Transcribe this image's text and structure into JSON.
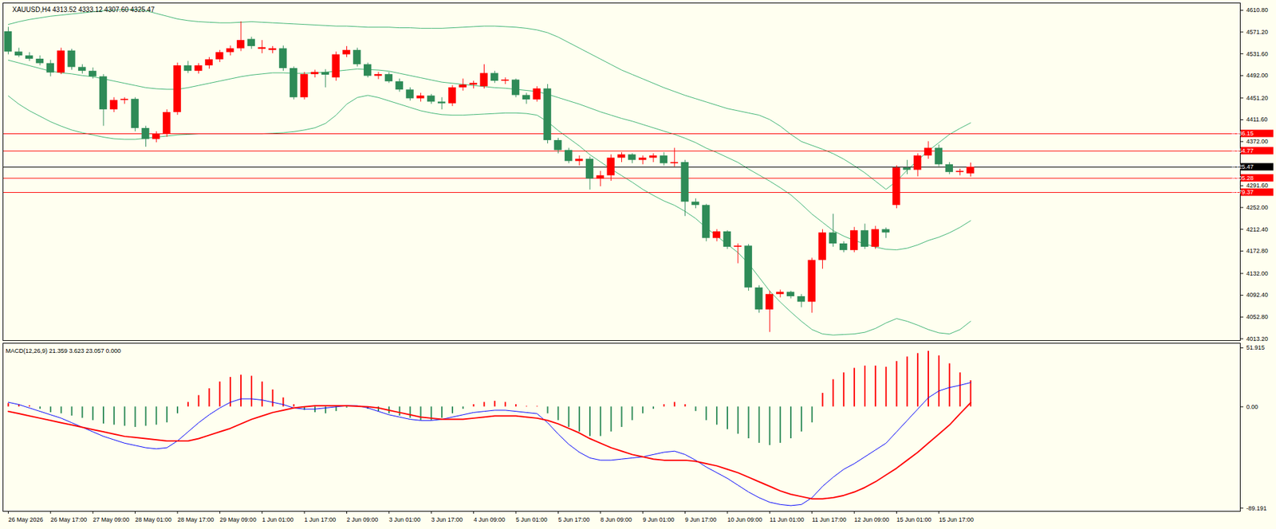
{
  "chart_data": [
    {
      "type": "candlestick",
      "title": "XAUUSD,H4 4313.52 4333.12 4307.60 4325.47",
      "x": [
        0,
        1,
        2,
        3,
        4,
        5,
        6,
        7,
        8,
        9,
        10,
        11,
        12,
        13,
        14,
        15,
        16,
        17,
        18,
        19,
        20,
        21,
        22,
        23,
        24,
        25,
        26,
        27,
        28,
        29,
        30,
        31,
        32,
        33,
        34,
        35,
        36,
        37,
        38,
        39,
        40,
        41,
        42,
        43,
        44,
        45,
        46,
        47,
        48,
        49,
        50,
        51,
        52,
        53,
        54,
        55,
        56,
        57,
        58,
        59,
        60,
        61,
        62,
        63,
        64,
        65,
        66,
        67,
        68,
        69,
        70,
        71,
        72,
        73,
        74,
        75,
        76,
        77,
        78,
        79,
        80,
        81,
        82,
        83,
        84,
        85,
        86,
        87,
        88,
        89,
        90,
        91
      ],
      "open": [
        4572,
        4535,
        4528,
        4522,
        4514,
        4497,
        4537,
        4507,
        4500,
        4490,
        4430,
        4447,
        4449,
        4396,
        4376,
        4386,
        4425,
        4510,
        4500,
        4510,
        4521,
        4534,
        4541,
        4558,
        4540,
        4538,
        4541,
        4505,
        4452,
        4494,
        4498,
        4488,
        4530,
        4538,
        4512,
        4491,
        4494,
        4481,
        4466,
        4450,
        4455,
        4444,
        4441,
        4470,
        4475,
        4472,
        4496,
        4482,
        4484,
        4456,
        4448,
        4468,
        4374,
        4356,
        4336,
        4340,
        4304,
        4310,
        4342,
        4348,
        4338,
        4342,
        4346,
        4332,
        4334,
        4262,
        4256,
        4196,
        4208,
        4180,
        4182,
        4106,
        4066,
        4094,
        4098,
        4090,
        4080,
        4156,
        4206,
        4186,
        4174,
        4210,
        4180,
        4212,
        4256,
        4324,
        4320,
        4346,
        4360,
        4330,
        4316,
        4313.52
      ],
      "high": [
        4580,
        4542,
        4534,
        4528,
        4520,
        4542,
        4540,
        4512,
        4506,
        4494,
        4452,
        4452,
        4452,
        4400,
        4390,
        4430,
        4515,
        4518,
        4514,
        4525,
        4538,
        4546,
        4590,
        4562,
        4556,
        4545,
        4546,
        4508,
        4498,
        4502,
        4503,
        4535,
        4545,
        4542,
        4515,
        4498,
        4498,
        4486,
        4470,
        4460,
        4458,
        4452,
        4474,
        4486,
        4482,
        4512,
        4500,
        4488,
        4486,
        4460,
        4472,
        4476,
        4378,
        4360,
        4346,
        4344,
        4318,
        4348,
        4352,
        4350,
        4346,
        4350,
        4352,
        4360,
        4338,
        4268,
        4258,
        4212,
        4210,
        4186,
        4185,
        4110,
        4100,
        4102,
        4100,
        4094,
        4160,
        4212,
        4240,
        4190,
        4216,
        4222,
        4218,
        4215,
        4328,
        4338,
        4350,
        4372,
        4366,
        4334,
        4322,
        4333.12
      ],
      "low": [
        4530,
        4525,
        4518,
        4510,
        4490,
        4494,
        4502,
        4495,
        4486,
        4400,
        4425,
        4440,
        4390,
        4362,
        4370,
        4380,
        4420,
        4496,
        4495,
        4504,
        4516,
        4528,
        4536,
        4540,
        4532,
        4532,
        4500,
        4448,
        4448,
        4488,
        4470,
        4482,
        4525,
        4508,
        4488,
        4485,
        4478,
        4462,
        4446,
        4444,
        4440,
        4430,
        4436,
        4464,
        4468,
        4468,
        4478,
        4476,
        4452,
        4440,
        4444,
        4368,
        4350,
        4332,
        4328,
        4284,
        4290,
        4300,
        4334,
        4332,
        4330,
        4334,
        4328,
        4326,
        4236,
        4250,
        4190,
        4190,
        4176,
        4150,
        4100,
        4060,
        4025,
        4088,
        4086,
        4070,
        4060,
        4140,
        4180,
        4170,
        4170,
        4176,
        4176,
        4196,
        4250,
        4312,
        4308,
        4340,
        4326,
        4312,
        4310,
        4307.6
      ],
      "close": [
        4535,
        4528,
        4522,
        4514,
        4497,
        4537,
        4507,
        4500,
        4490,
        4430,
        4447,
        4449,
        4396,
        4376,
        4386,
        4425,
        4510,
        4500,
        4510,
        4521,
        4534,
        4541,
        4556,
        4545,
        4543,
        4541,
        4505,
        4452,
        4494,
        4498,
        4493,
        4530,
        4538,
        4512,
        4491,
        4494,
        4481,
        4466,
        4450,
        4455,
        4444,
        4441,
        4470,
        4475,
        4478,
        4496,
        4482,
        4484,
        4456,
        4448,
        4468,
        4374,
        4356,
        4336,
        4340,
        4304,
        4310,
        4342,
        4348,
        4338,
        4342,
        4346,
        4332,
        4334,
        4262,
        4256,
        4196,
        4208,
        4180,
        4182,
        4106,
        4066,
        4094,
        4098,
        4090,
        4080,
        4156,
        4206,
        4186,
        4174,
        4210,
        4180,
        4212,
        4206,
        4324,
        4320,
        4346,
        4360,
        4330,
        4316,
        4318,
        4325.47
      ],
      "bollinger": {
        "upper": [
          4585,
          4590,
          4594,
          4597,
          4600,
          4602,
          4604,
          4606,
          4608,
          4610,
          4611,
          4612,
          4612,
          4610,
          4605,
          4600,
          4595,
          4592,
          4590,
          4589,
          4588,
          4588,
          4589,
          4590,
          4589,
          4588,
          4587,
          4586,
          4585,
          4584,
          4583,
          4582,
          4582,
          4581,
          4580,
          4580,
          4580,
          4579,
          4579,
          4578,
          4578,
          4578,
          4579,
          4580,
          4581,
          4582,
          4582,
          4581,
          4580,
          4578,
          4575,
          4570,
          4562,
          4552,
          4542,
          4532,
          4522,
          4512,
          4502,
          4494,
          4486,
          4478,
          4470,
          4463,
          4456,
          4450,
          4444,
          4438,
          4432,
          4428,
          4424,
          4420,
          4412,
          4400,
          4385,
          4372,
          4365,
          4358,
          4350,
          4340,
          4328,
          4315,
          4300,
          4285,
          4300,
          4320,
          4338,
          4355,
          4370,
          4385,
          4396,
          4406
        ],
        "middle": [
          4520,
          4515,
          4510,
          4505,
          4500,
          4497,
          4495,
          4492,
          4490,
          4486,
          4482,
          4478,
          4474,
          4470,
          4468,
          4467,
          4467,
          4470,
          4474,
          4478,
          4482,
          4486,
          4490,
          4493,
          4495,
          4497,
          4497,
          4496,
          4496,
          4497,
          4498,
          4500,
          4502,
          4504,
          4503,
          4502,
          4500,
          4496,
          4492,
          4488,
          4484,
          4480,
          4478,
          4476,
          4474,
          4472,
          4470,
          4469,
          4467,
          4465,
          4463,
          4458,
          4452,
          4446,
          4440,
          4433,
          4426,
          4420,
          4414,
          4409,
          4403,
          4397,
          4391,
          4385,
          4378,
          4370,
          4360,
          4352,
          4343,
          4334,
          4322,
          4311,
          4300,
          4288,
          4275,
          4258,
          4240,
          4225,
          4210,
          4200,
          4192,
          4186,
          4180,
          4176,
          4175,
          4178,
          4184,
          4192,
          4198,
          4206,
          4216,
          4228
        ],
        "lower": [
          4455,
          4440,
          4428,
          4418,
          4408,
          4400,
          4393,
          4388,
          4384,
          4380,
          4377,
          4376,
          4376,
          4378,
          4380,
          4382,
          4384,
          4385,
          4386,
          4386,
          4386,
          4386,
          4386,
          4386,
          4386,
          4387,
          4388,
          4390,
          4393,
          4397,
          4405,
          4420,
          4440,
          4452,
          4456,
          4452,
          4446,
          4440,
          4434,
          4428,
          4424,
          4421,
          4420,
          4420,
          4421,
          4422,
          4423,
          4424,
          4424,
          4423,
          4420,
          4408,
          4392,
          4378,
          4364,
          4348,
          4335,
          4322,
          4310,
          4298,
          4285,
          4274,
          4264,
          4256,
          4245,
          4232,
          4215,
          4200,
          4185,
          4170,
          4150,
          4125,
          4100,
          4080,
          4062,
          4045,
          4030,
          4022,
          4020,
          4021,
          4022,
          4025,
          4032,
          4042,
          4050,
          4045,
          4038,
          4030,
          4024,
          4022,
          4030,
          4045
        ]
      },
      "levels": [
        4386.15,
        4354.77,
        4305.28,
        4279.37
      ],
      "last_price": 4325.47,
      "xlim": [
        -0.5,
        116.5
      ],
      "ylim": [
        4010,
        4624
      ],
      "yticks": [
        {
          "value": 4610.8,
          "label": "4610.80"
        },
        {
          "value": 4571.2,
          "label": "4571.20"
        },
        {
          "value": 4531.6,
          "label": "4531.60"
        },
        {
          "value": 4492,
          "label": "4492.00"
        },
        {
          "value": 4451.2,
          "label": "4451.20"
        },
        {
          "value": 4411.6,
          "label": "4411.60"
        },
        {
          "value": 4372,
          "label": "4372.00"
        },
        {
          "value": 4291.6,
          "label": "4291.60"
        },
        {
          "value": 4252,
          "label": "4252.00"
        },
        {
          "value": 4212.4,
          "label": "4212.40"
        },
        {
          "value": 4172.8,
          "label": "4172.80"
        },
        {
          "value": 4132,
          "label": "4132.00"
        },
        {
          "value": 4092.4,
          "label": "4092.40"
        },
        {
          "value": 4052.8,
          "label": "4052.80"
        },
        {
          "value": 4013.2,
          "label": "4013.20"
        }
      ],
      "grid": false,
      "tick_labels": "y"
    },
    {
      "type": "macd",
      "title": "MACD(12,26,9) 21.359 3.623 23.057 0.000",
      "x": [
        0,
        1,
        2,
        3,
        4,
        5,
        6,
        7,
        8,
        9,
        10,
        11,
        12,
        13,
        14,
        15,
        16,
        17,
        18,
        19,
        20,
        21,
        22,
        23,
        24,
        25,
        26,
        27,
        28,
        29,
        30,
        31,
        32,
        33,
        34,
        35,
        36,
        37,
        38,
        39,
        40,
        41,
        42,
        43,
        44,
        45,
        46,
        47,
        48,
        49,
        50,
        51,
        52,
        53,
        54,
        55,
        56,
        57,
        58,
        59,
        60,
        61,
        62,
        63,
        64,
        65,
        66,
        67,
        68,
        69,
        70,
        71,
        72,
        73,
        74,
        75,
        76,
        77,
        78,
        79,
        80,
        81,
        82,
        83,
        84,
        85,
        86,
        87,
        88,
        89,
        90,
        91
      ],
      "histogram": [
        3,
        2,
        1,
        -2,
        -5,
        -6,
        -8,
        -10,
        -12,
        -15,
        -16,
        -17,
        -18,
        -17,
        -16,
        -14,
        -6,
        4,
        10,
        16,
        22,
        26,
        28,
        27,
        22,
        15,
        8,
        2,
        -3,
        -5,
        -6,
        -4,
        -1,
        0.5,
        -2,
        -4,
        -6,
        -8,
        -10,
        -12,
        -12,
        -10,
        -6,
        -2,
        2,
        4,
        5,
        4,
        2,
        0.5,
        0.5,
        -6,
        -12,
        -18,
        -22,
        -26,
        -26,
        -22,
        -18,
        -12,
        -6,
        -2,
        2,
        4,
        2,
        -4,
        -12,
        -16,
        -20,
        -24,
        -28,
        -32,
        -34,
        -32,
        -28,
        -22,
        -14,
        12,
        24,
        30,
        34,
        36,
        36,
        35,
        40,
        44,
        47,
        49,
        45,
        38,
        30,
        23.057
      ],
      "macd": [
        4,
        2,
        -1,
        -4,
        -7,
        -10,
        -14,
        -18,
        -22,
        -26,
        -29,
        -32,
        -34,
        -36,
        -37,
        -36,
        -30,
        -22,
        -14,
        -7,
        -1,
        4,
        7,
        7,
        6,
        4,
        2,
        -1,
        -2,
        -2,
        -1,
        0,
        1,
        1,
        -1,
        -4,
        -7,
        -9,
        -11,
        -12,
        -12,
        -11,
        -9,
        -7,
        -5,
        -4,
        -3,
        -3,
        -4,
        -5,
        -6,
        -14,
        -24,
        -33,
        -40,
        -45,
        -47,
        -47,
        -46,
        -45,
        -44,
        -42,
        -40,
        -39,
        -42,
        -47,
        -53,
        -58,
        -63,
        -69,
        -75,
        -80,
        -84,
        -86,
        -87,
        -86,
        -80,
        -70,
        -62,
        -55,
        -50,
        -44,
        -38,
        -32,
        -22,
        -12,
        -2,
        8,
        14,
        17,
        19,
        21.359
      ],
      "signal": [
        -4,
        -6,
        -8,
        -10,
        -12,
        -14,
        -16,
        -18,
        -20,
        -22,
        -24,
        -26,
        -27,
        -28,
        -29,
        -30,
        -30,
        -30,
        -28,
        -25,
        -22,
        -19,
        -15,
        -11,
        -8,
        -5,
        -3,
        -1,
        0,
        1,
        1,
        1,
        1,
        0.5,
        0,
        -1,
        -3,
        -5,
        -7,
        -9,
        -10,
        -11,
        -11,
        -11,
        -10,
        -9,
        -8,
        -8,
        -8,
        -9,
        -10,
        -12,
        -15,
        -19,
        -23,
        -28,
        -32,
        -36,
        -39,
        -42,
        -44,
        -46,
        -47,
        -47,
        -47,
        -48,
        -50,
        -52,
        -55,
        -58,
        -62,
        -66,
        -70,
        -74,
        -77,
        -79,
        -81,
        -81,
        -80,
        -78,
        -75,
        -71,
        -66,
        -60,
        -54,
        -47,
        -40,
        -32,
        -24,
        -16,
        -6,
        3.623
      ],
      "xlim": [
        -0.5,
        116.5
      ],
      "xticks": [
        {
          "value": 0,
          "label": "26 May 2026"
        },
        {
          "value": 4,
          "label": "26 May 17:00"
        },
        {
          "value": 8,
          "label": "27 May 09:00"
        },
        {
          "value": 12,
          "label": "28 May 01:00"
        },
        {
          "value": 16,
          "label": "28 May 17:00"
        },
        {
          "value": 20,
          "label": "29 May 09:00"
        },
        {
          "value": 24,
          "label": "1 Jun 01:00"
        },
        {
          "value": 28,
          "label": "1 Jun 17:00"
        },
        {
          "value": 32,
          "label": "2 Jun 09:00"
        },
        {
          "value": 36,
          "label": "3 Jun 01:00"
        },
        {
          "value": 40,
          "label": "3 Jun 17:00"
        },
        {
          "value": 44,
          "label": "4 Jun 09:00"
        },
        {
          "value": 48,
          "label": "5 Jun 01:00"
        },
        {
          "value": 52,
          "label": "5 Jun 17:00"
        },
        {
          "value": 56,
          "label": "8 Jun 09:00"
        },
        {
          "value": 60,
          "label": "9 Jun 01:00"
        },
        {
          "value": 64,
          "label": "9 Jun 17:00"
        },
        {
          "value": 68,
          "label": "10 Jun 09:00"
        },
        {
          "value": 72,
          "label": "11 Jun 01:00"
        },
        {
          "value": 76,
          "label": "11 Jun 17:00"
        },
        {
          "value": 80,
          "label": "12 Jun 09:00"
        },
        {
          "value": 84,
          "label": "15 Jun 01:00"
        },
        {
          "value": 88,
          "label": "15 Jun 17:00"
        }
      ],
      "ylim": [
        -92,
        56
      ],
      "yticks": [
        51.915,
        {
          "value": 0,
          "label": "0.00"
        },
        -89.191
      ],
      "grid": false
    }
  ]
}
